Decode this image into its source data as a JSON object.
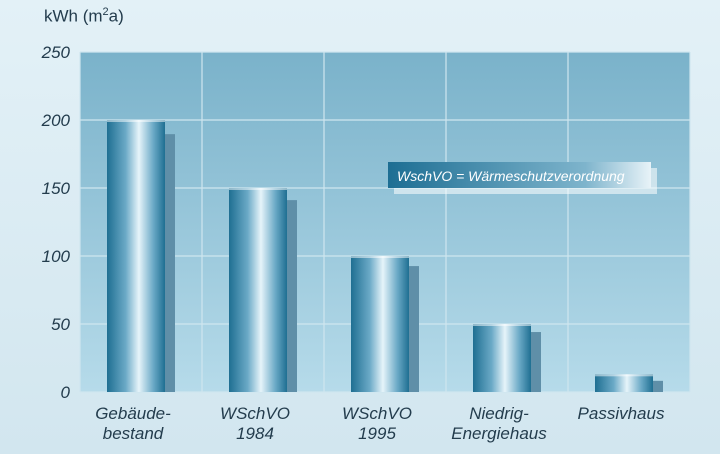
{
  "chart_data": {
    "type": "bar",
    "ylabel_main": "kWh (m",
    "ylabel_sup": "2",
    "ylabel_tail": "a)",
    "ylim": [
      0,
      250
    ],
    "yticks": [
      0,
      50,
      100,
      150,
      200,
      250
    ],
    "yticks_labels": [
      "0",
      "50",
      "100",
      "150",
      "200",
      "250"
    ],
    "categories": [
      [
        "Gebäude-",
        "bestand"
      ],
      [
        "WSchVO",
        "1984"
      ],
      [
        "WSchVO",
        "1995"
      ],
      [
        "Niedrig-",
        "Energiehaus"
      ],
      [
        "Passivhaus"
      ]
    ],
    "values": [
      200,
      150,
      100,
      50,
      13
    ],
    "grid": true,
    "annotation": "WschVO = Wärmeschutzverordnung",
    "colors": {
      "bar_dark": "#1f6f92",
      "bar_light": "#e6f4fa",
      "bar_shadow": "#5f8fa8",
      "plot_bg_top": "#7ab2ca",
      "plot_bg_bottom": "#b6dbea",
      "grid": "#cfe6ef",
      "text": "#233c4d",
      "annotation_bg": "#1d6e93"
    }
  }
}
